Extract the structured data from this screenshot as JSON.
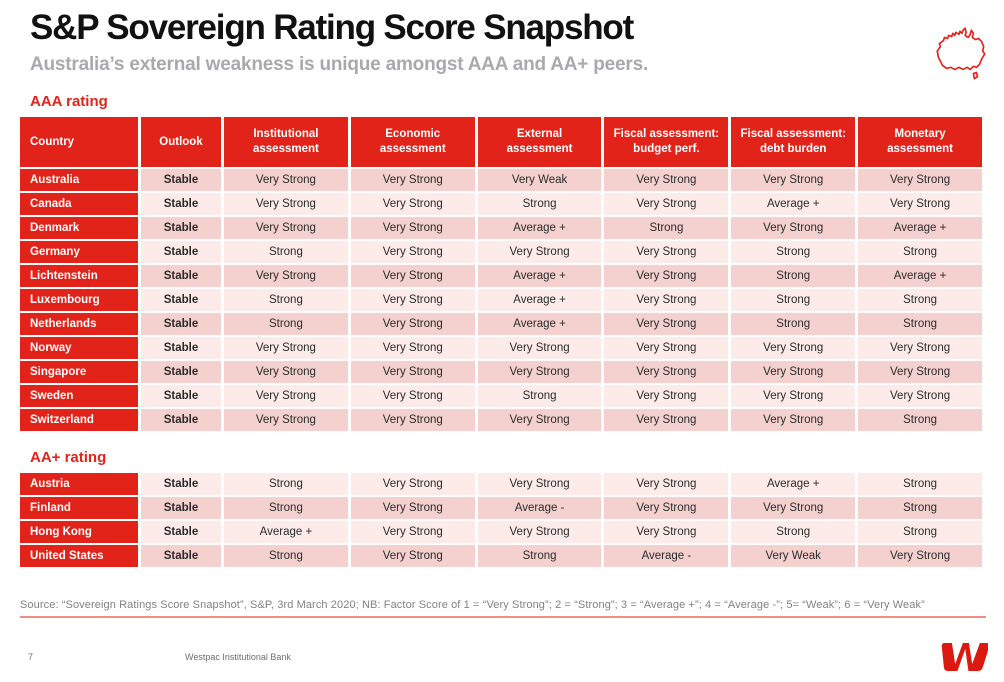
{
  "slide": {
    "title": "S&P Sovereign Rating Score Snapshot",
    "subtitle": "Australia’s external weakness is unique amongst AAA and AA+ peers.",
    "source_note": "Source: “Sovereign Ratings Score Snapshot”, S&P, 3rd March 2020; NB: Factor Score of 1 = “Very Strong”; 2 = “Strong”; 3 = “Average +”; 4 = “Average -”; 5= “Weak”; 6 = “Very Weak”",
    "footer": {
      "page_number": "7",
      "organisation": "Westpac Institutional Bank",
      "logo": "westpac-w-logo"
    },
    "icons": {
      "top_right": "australia-outline-map"
    }
  },
  "colors": {
    "brand_red": "#e2231a",
    "row_dark_pink": "#f4d1cf",
    "row_light_pink": "#fcebe9",
    "rating_green": "#27a86d",
    "rating_red": "#e2231a",
    "rating_black": "#222222",
    "subtitle_gray": "#a7a9ac",
    "source_gray": "#808285",
    "source_underline": "#ef8e84"
  },
  "rating_tables": {
    "columns": [
      "Country",
      "Outlook",
      "Institutional assessment",
      "Economic assessment",
      "External assessment",
      "Fiscal assessment: budget perf.",
      "Fiscal assessment: debt burden",
      "Monetary assessment"
    ],
    "value_colors": {
      "Very Strong": "green",
      "Strong": "green",
      "Average +": "black",
      "Average -": "black",
      "Weak": "red",
      "Very Weak": "red"
    },
    "groups": [
      {
        "label": "AAA rating",
        "rows": [
          {
            "country": "Australia",
            "outlook": "Stable",
            "values": [
              "Very Strong",
              "Very Strong",
              "Very Weak",
              "Very Strong",
              "Very Strong",
              "Very Strong"
            ]
          },
          {
            "country": "Canada",
            "outlook": "Stable",
            "values": [
              "Very Strong",
              "Very Strong",
              "Strong",
              "Very Strong",
              "Average +",
              "Very Strong"
            ]
          },
          {
            "country": "Denmark",
            "outlook": "Stable",
            "values": [
              "Very Strong",
              "Very Strong",
              "Average +",
              "Strong",
              "Very Strong",
              "Average +"
            ]
          },
          {
            "country": "Germany",
            "outlook": "Stable",
            "values": [
              "Strong",
              "Very Strong",
              "Very Strong",
              "Very Strong",
              "Strong",
              "Strong"
            ]
          },
          {
            "country": "Lichtenstein",
            "outlook": "Stable",
            "values": [
              "Very Strong",
              "Very Strong",
              "Average +",
              "Very Strong",
              "Strong",
              "Average +"
            ]
          },
          {
            "country": "Luxembourg",
            "outlook": "Stable",
            "values": [
              "Strong",
              "Very Strong",
              "Average +",
              "Very Strong",
              "Strong",
              "Strong"
            ]
          },
          {
            "country": "Netherlands",
            "outlook": "Stable",
            "values": [
              "Strong",
              "Very Strong",
              "Average +",
              "Very Strong",
              "Strong",
              "Strong"
            ]
          },
          {
            "country": "Norway",
            "outlook": "Stable",
            "values": [
              "Very Strong",
              "Very Strong",
              "Very Strong",
              "Very Strong",
              "Very Strong",
              "Very Strong"
            ]
          },
          {
            "country": "Singapore",
            "outlook": "Stable",
            "values": [
              "Very Strong",
              "Very Strong",
              "Very Strong",
              "Very Strong",
              "Very Strong",
              "Very Strong"
            ]
          },
          {
            "country": "Sweden",
            "outlook": "Stable",
            "values": [
              "Very Strong",
              "Very Strong",
              "Strong",
              "Very Strong",
              "Very Strong",
              "Very Strong"
            ]
          },
          {
            "country": "Switzerland",
            "outlook": "Stable",
            "values": [
              "Very Strong",
              "Very Strong",
              "Very Strong",
              "Very Strong",
              "Very Strong",
              "Strong"
            ]
          }
        ]
      },
      {
        "label": "AA+ rating",
        "rows": [
          {
            "country": "Austria",
            "outlook": "Stable",
            "values": [
              "Strong",
              "Very Strong",
              "Very Strong",
              "Very Strong",
              "Average +",
              "Strong"
            ]
          },
          {
            "country": "Finland",
            "outlook": "Stable",
            "values": [
              "Strong",
              "Very Strong",
              "Average -",
              "Very Strong",
              "Very Strong",
              "Strong"
            ]
          },
          {
            "country": "Hong Kong",
            "outlook": "Stable",
            "values": [
              "Average +",
              "Very Strong",
              "Very Strong",
              "Very Strong",
              "Strong",
              "Strong"
            ]
          },
          {
            "country": "United States",
            "outlook": "Stable",
            "values": [
              "Strong",
              "Very Strong",
              "Strong",
              "Average -",
              "Very Weak",
              "Very Strong"
            ]
          }
        ]
      }
    ]
  }
}
